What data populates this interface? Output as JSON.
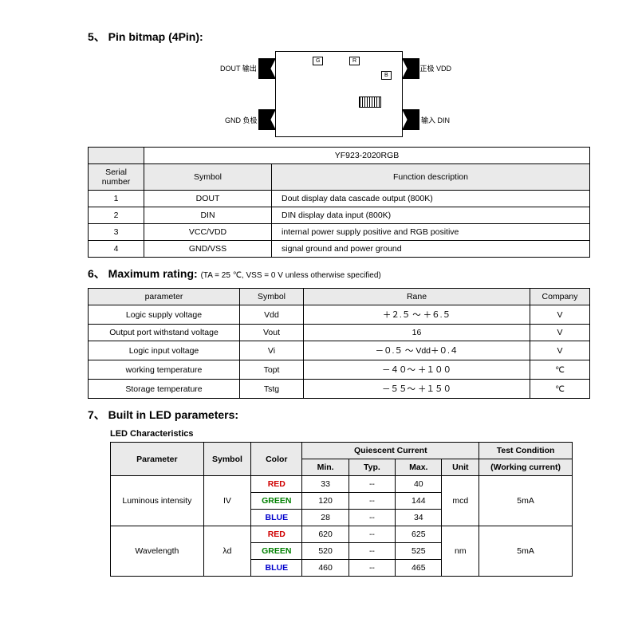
{
  "section5": {
    "title": "5、 Pin bitmap (4Pin):",
    "chip": {
      "tl_label": "DOUT 输出",
      "bl_label": "GND 负极",
      "tr_label": "正极 VDD",
      "br_label": "输入 DIN",
      "g": "G",
      "r": "R",
      "b": "B"
    },
    "part_number": "YF923-2020RGB",
    "headers": {
      "serial": "Serial number",
      "symbol": "Symbol",
      "func": "Function description"
    },
    "rows": [
      {
        "n": "1",
        "sym": "DOUT",
        "func": "Dout display data cascade output (800K)"
      },
      {
        "n": "2",
        "sym": "DIN",
        "func": "DIN display data input (800K)"
      },
      {
        "n": "3",
        "sym": "VCC/VDD",
        "func": "internal power supply positive and RGB positive"
      },
      {
        "n": "4",
        "sym": "GND/VSS",
        "func": "signal ground and power ground"
      }
    ]
  },
  "section6": {
    "title": "6、 Maximum rating: ",
    "note": "(TA = 25 ℃, VSS = 0 V unless otherwise specified)",
    "headers": {
      "param": "parameter",
      "symbol": "Symbol",
      "range": "Rane",
      "company": "Company"
    },
    "rows": [
      {
        "p": "Logic supply voltage",
        "s": "Vdd",
        "r": "＋２.５ ～ ＋６.５",
        "c": "V"
      },
      {
        "p": "Output port withstand voltage",
        "s": "Vout",
        "r": "16",
        "c": "V"
      },
      {
        "p": "Logic input voltage",
        "s": "Vi",
        "r": "－０.５ ～ Vdd＋０.４",
        "c": "V"
      },
      {
        "p": "working temperature",
        "s": "Topt",
        "r": "－４０～ ＋１００",
        "c": "℃"
      },
      {
        "p": "Storage temperature",
        "s": "Tstg",
        "r": "－５５～ ＋１５０",
        "c": "℃"
      }
    ]
  },
  "section7": {
    "title": "7、 Built in LED parameters:",
    "sub": "LED Characteristics",
    "headers": {
      "param": "Parameter",
      "symbol": "Symbol",
      "color": "Color",
      "qc": "Quiescent Current",
      "min": "Min.",
      "typ": "Typ.",
      "max": "Max.",
      "unit": "Unit",
      "tc": "Test Condition",
      "wc": "(Working current)"
    },
    "groups": [
      {
        "param": "Luminous intensity",
        "sym": "IV",
        "unit": "mcd",
        "tc": "5mA",
        "rows": [
          {
            "color": "RED",
            "cls": "red",
            "min": "33",
            "typ": "--",
            "max": "40"
          },
          {
            "color": "GREEN",
            "cls": "green",
            "min": "120",
            "typ": "--",
            "max": "144"
          },
          {
            "color": "BLUE",
            "cls": "blue",
            "min": "28",
            "typ": "--",
            "max": "34"
          }
        ]
      },
      {
        "param": "Wavelength",
        "sym": "λd",
        "unit": "nm",
        "tc": "5mA",
        "rows": [
          {
            "color": "RED",
            "cls": "red",
            "min": "620",
            "typ": "--",
            "max": "625"
          },
          {
            "color": "GREEN",
            "cls": "green",
            "min": "520",
            "typ": "--",
            "max": "525"
          },
          {
            "color": "BLUE",
            "cls": "blue",
            "min": "460",
            "typ": "--",
            "max": "465"
          }
        ]
      }
    ]
  }
}
